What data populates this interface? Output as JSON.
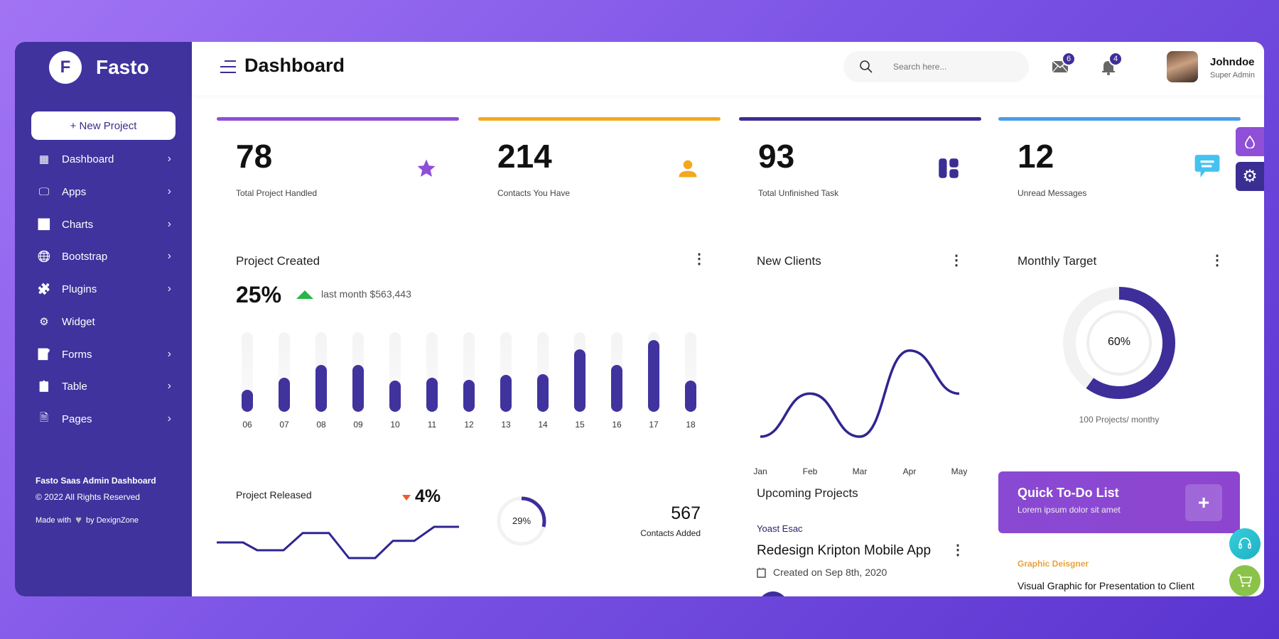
{
  "brand": {
    "logo_letter": "F",
    "name": "Fasto"
  },
  "sidebar": {
    "new_project": "+ New Project",
    "items": [
      {
        "label": "Dashboard",
        "icon": "grid-icon"
      },
      {
        "label": "Apps",
        "icon": "monitor-icon"
      },
      {
        "label": "Charts",
        "icon": "chart-icon"
      },
      {
        "label": "Bootstrap",
        "icon": "globe-icon"
      },
      {
        "label": "Plugins",
        "icon": "puzzle-icon"
      },
      {
        "label": "Widget",
        "icon": "gear-icon"
      },
      {
        "label": "Forms",
        "icon": "form-icon"
      },
      {
        "label": "Table",
        "icon": "clipboard-icon"
      },
      {
        "label": "Pages",
        "icon": "pages-icon"
      }
    ],
    "footer_title": "Fasto Saas Admin Dashboard",
    "footer_copyright": "© 2022 All Rights Reserved",
    "footer_made_with": "Made with",
    "footer_by": "by DexignZone"
  },
  "header": {
    "title": "Dashboard",
    "search_placeholder": "Search here...",
    "mail_count": "6",
    "notification_count": "4",
    "user_name": "Johndoe",
    "user_role": "Super Admin"
  },
  "stats": [
    {
      "value": "78",
      "label": "Total Project Handled",
      "color": "#8e4fd6",
      "icon": "star-icon"
    },
    {
      "value": "214",
      "label": "Contacts You Have",
      "color": "#f4a81d",
      "icon": "user-icon"
    },
    {
      "value": "93",
      "label": "Total Unfinished Task",
      "color": "#3b2e93",
      "icon": "layout-icon"
    },
    {
      "value": "12",
      "label": "Unread Messages",
      "color": "#4a9de8",
      "icon": "message-icon"
    }
  ],
  "project_created": {
    "title": "Project Created",
    "percent": "25%",
    "trend": "up",
    "subtitle": "last month $563,443"
  },
  "new_clients": {
    "title": "New Clients"
  },
  "monthly_target": {
    "title": "Monthly Target",
    "percent_label": "60%",
    "percent": 60,
    "caption": "100 Projects/ monthy"
  },
  "project_released": {
    "title": "Project Released",
    "percent": "4%",
    "trend": "down"
  },
  "contacts_added": {
    "percent_label": "29%",
    "percent": 29,
    "value": "567",
    "label": "Contacts Added"
  },
  "upcoming": {
    "title": "Upcoming Projects",
    "author": "Yoast Esac",
    "project": "Redesign Kripton Mobile App",
    "created": "Created on Sep 8th, 2020"
  },
  "todo": {
    "title": "Quick To-Do List",
    "subtitle": "Lorem ipsum dolor sit amet",
    "add_label": "+"
  },
  "task": {
    "category": "Graphic Deisgner",
    "title": "Visual Graphic for Presentation to Client"
  },
  "chart_data": [
    {
      "type": "bar",
      "title": "Project Created",
      "categories": [
        "06",
        "07",
        "08",
        "09",
        "10",
        "11",
        "12",
        "13",
        "14",
        "15",
        "16",
        "17",
        "18"
      ],
      "values": [
        28,
        43,
        59,
        59,
        39,
        43,
        40,
        46,
        47,
        79,
        59,
        90,
        39
      ],
      "ylim": [
        0,
        100
      ],
      "grid": false
    },
    {
      "type": "line",
      "title": "New Clients",
      "categories": [
        "Jan",
        "Feb",
        "Mar",
        "Apr",
        "May"
      ],
      "values": [
        0,
        30,
        0,
        60,
        30
      ],
      "grid": false
    },
    {
      "type": "line",
      "title": "Project Released",
      "values": [
        10,
        10,
        5,
        5,
        16,
        16,
        0,
        0,
        11,
        11,
        20,
        20
      ],
      "grid": false
    }
  ],
  "colors": {
    "primary": "#40339d",
    "accent": "#8e4fd6",
    "up": "#2bb44a",
    "down": "#f05a28",
    "task_category": "#e9a23b"
  }
}
